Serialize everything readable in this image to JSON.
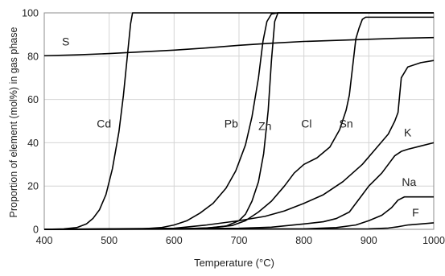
{
  "colors": {
    "line": "#000000",
    "grid": "#d4d4d4",
    "axis": "#8c8c8c",
    "text": "#222222",
    "background": "#ffffff"
  },
  "chart_data": {
    "type": "line",
    "title": "",
    "xlabel": "Temperature  (°C)",
    "ylabel": "Proportion of element (mol%) in gas phase",
    "xlim": [
      400,
      1000
    ],
    "ylim": [
      0,
      100
    ],
    "x_ticks": [
      400,
      500,
      600,
      700,
      800,
      900,
      1000
    ],
    "y_ticks": [
      0,
      20,
      40,
      60,
      80,
      100
    ],
    "grid": true,
    "legend": "none (series labeled directly on lines)",
    "series": [
      {
        "name": "S",
        "points": [
          [
            400,
            80.2
          ],
          [
            450,
            80.6
          ],
          [
            500,
            81.2
          ],
          [
            550,
            82.0
          ],
          [
            600,
            82.8
          ],
          [
            650,
            83.8
          ],
          [
            700,
            85.0
          ],
          [
            750,
            86.0
          ],
          [
            800,
            86.8
          ],
          [
            850,
            87.3
          ],
          [
            900,
            87.8
          ],
          [
            950,
            88.3
          ],
          [
            1000,
            88.6
          ]
        ]
      },
      {
        "name": "Cd",
        "points": [
          [
            400,
            0
          ],
          [
            430,
            0.2
          ],
          [
            450,
            0.8
          ],
          [
            465,
            2.5
          ],
          [
            475,
            5
          ],
          [
            485,
            9
          ],
          [
            495,
            16
          ],
          [
            505,
            28
          ],
          [
            515,
            45
          ],
          [
            522,
            62
          ],
          [
            528,
            80
          ],
          [
            533,
            95
          ],
          [
            536,
            100
          ],
          [
            1000,
            100
          ]
        ]
      },
      {
        "name": "Pb",
        "points": [
          [
            400,
            0
          ],
          [
            550,
            0.2
          ],
          [
            580,
            0.8
          ],
          [
            600,
            2
          ],
          [
            620,
            4
          ],
          [
            640,
            7.5
          ],
          [
            660,
            12
          ],
          [
            680,
            19
          ],
          [
            695,
            27
          ],
          [
            710,
            39
          ],
          [
            720,
            52
          ],
          [
            730,
            70
          ],
          [
            737,
            87
          ],
          [
            743,
            96
          ],
          [
            750,
            99.5
          ],
          [
            760,
            100
          ],
          [
            1000,
            100
          ]
        ]
      },
      {
        "name": "Zn",
        "points": [
          [
            400,
            0
          ],
          [
            600,
            0.2
          ],
          [
            650,
            0.6
          ],
          [
            680,
            1.5
          ],
          [
            700,
            4
          ],
          [
            710,
            7
          ],
          [
            720,
            13
          ],
          [
            730,
            22
          ],
          [
            738,
            35
          ],
          [
            745,
            55
          ],
          [
            750,
            78
          ],
          [
            755,
            96
          ],
          [
            760,
            100
          ],
          [
            1000,
            100
          ]
        ]
      },
      {
        "name": "Cl",
        "points": [
          [
            400,
            0
          ],
          [
            620,
            0.2
          ],
          [
            660,
            0.8
          ],
          [
            690,
            1.8
          ],
          [
            710,
            4
          ],
          [
            730,
            8
          ],
          [
            750,
            13
          ],
          [
            770,
            20
          ],
          [
            785,
            26
          ],
          [
            800,
            30
          ],
          [
            820,
            33
          ],
          [
            840,
            38
          ],
          [
            855,
            46
          ],
          [
            865,
            55
          ],
          [
            870,
            62
          ],
          [
            875,
            75
          ],
          [
            880,
            88
          ],
          [
            885,
            93
          ],
          [
            890,
            97
          ],
          [
            895,
            98
          ],
          [
            1000,
            98
          ]
        ]
      },
      {
        "name": "Sn",
        "points": [
          [
            400,
            0
          ],
          [
            600,
            0.5
          ],
          [
            650,
            2
          ],
          [
            700,
            4
          ],
          [
            740,
            6
          ],
          [
            770,
            8.5
          ],
          [
            800,
            12
          ],
          [
            830,
            16
          ],
          [
            860,
            22
          ],
          [
            890,
            30
          ],
          [
            910,
            37
          ],
          [
            930,
            44
          ],
          [
            940,
            50
          ],
          [
            945,
            54
          ],
          [
            950,
            70
          ],
          [
            960,
            75
          ],
          [
            980,
            77
          ],
          [
            1000,
            78
          ]
        ]
      },
      {
        "name": "K",
        "points": [
          [
            400,
            0
          ],
          [
            700,
            0.5
          ],
          [
            750,
            1
          ],
          [
            800,
            2.5
          ],
          [
            830,
            3.5
          ],
          [
            850,
            5
          ],
          [
            870,
            8
          ],
          [
            880,
            12
          ],
          [
            890,
            16
          ],
          [
            900,
            20
          ],
          [
            910,
            23
          ],
          [
            920,
            26
          ],
          [
            930,
            30
          ],
          [
            940,
            34
          ],
          [
            950,
            36
          ],
          [
            960,
            37
          ],
          [
            980,
            38.5
          ],
          [
            1000,
            40
          ]
        ]
      },
      {
        "name": "Na",
        "points": [
          [
            400,
            0
          ],
          [
            800,
            0.2
          ],
          [
            850,
            0.8
          ],
          [
            880,
            2
          ],
          [
            900,
            4
          ],
          [
            920,
            6.5
          ],
          [
            935,
            10
          ],
          [
            945,
            13.5
          ],
          [
            955,
            15
          ],
          [
            1000,
            15
          ]
        ]
      },
      {
        "name": "F",
        "points": [
          [
            400,
            0
          ],
          [
            900,
            0.2
          ],
          [
            930,
            0.6
          ],
          [
            945,
            1.2
          ],
          [
            960,
            2
          ],
          [
            980,
            2.5
          ],
          [
            1000,
            3
          ]
        ]
      }
    ],
    "annotations": [
      {
        "text": "S",
        "x": 433,
        "y": 85
      },
      {
        "text": "Cd",
        "x": 492,
        "y": 47
      },
      {
        "text": "Pb",
        "x": 688,
        "y": 47
      },
      {
        "text": "Zn",
        "x": 740,
        "y": 46
      },
      {
        "text": "Cl",
        "x": 804,
        "y": 47
      },
      {
        "text": "Sn",
        "x": 865,
        "y": 47
      },
      {
        "text": "K",
        "x": 960,
        "y": 43
      },
      {
        "text": "Na",
        "x": 962,
        "y": 20
      },
      {
        "text": "F",
        "x": 972,
        "y": 6
      }
    ]
  }
}
